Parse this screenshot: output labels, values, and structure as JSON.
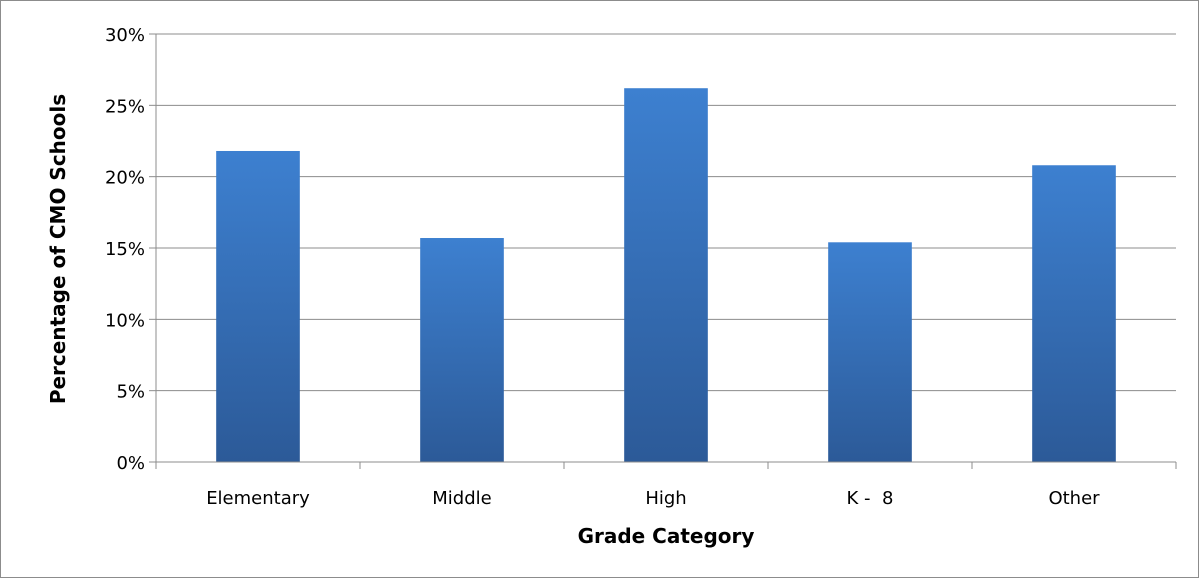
{
  "chart_data": {
    "type": "bar",
    "title": "",
    "xlabel": "Grade Category",
    "ylabel": "Percentage of CMO Schools",
    "categories": [
      "Elementary",
      "Middle",
      "High",
      "K -  8",
      "Other"
    ],
    "values": [
      21.8,
      15.7,
      26.2,
      15.4,
      20.8
    ],
    "ylim": [
      0,
      30
    ],
    "yticks": [
      "0%",
      "5%",
      "10%",
      "15%",
      "20%",
      "25%",
      "30%"
    ],
    "ytick_values": [
      0,
      5,
      10,
      15,
      20,
      25,
      30
    ],
    "grid": true,
    "legend": "none",
    "colors": {
      "bar_top": "#3d80d0",
      "bar_bottom": "#2c5a98",
      "grid": "#8c8c8c",
      "axis": "#8c8c8c"
    }
  }
}
